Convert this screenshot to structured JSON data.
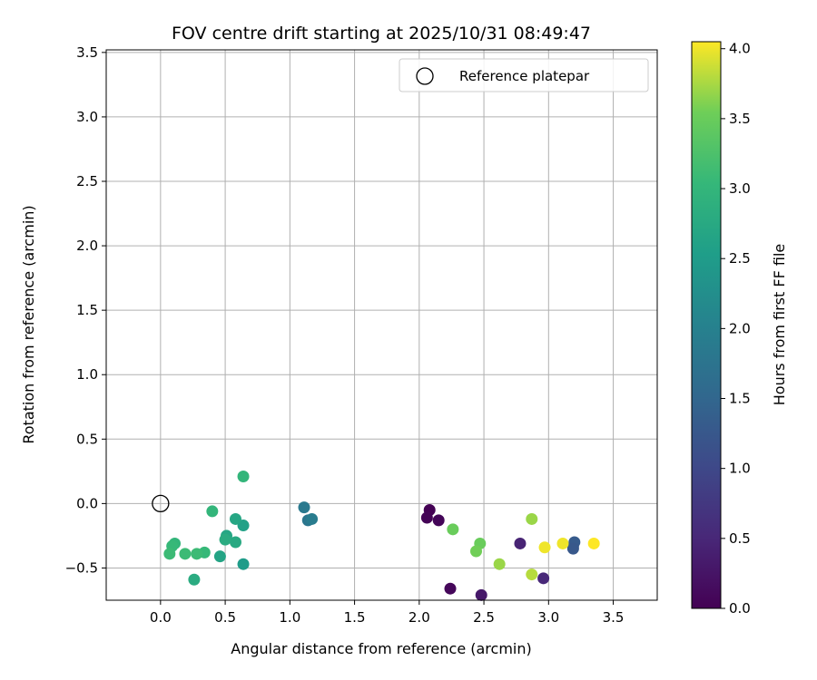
{
  "chart_data": {
    "type": "scatter",
    "title": "FOV centre drift starting at 2025/10/31 08:49:47",
    "xlabel": "Angular distance from reference (arcmin)",
    "ylabel": "Rotation from reference (arcmin)",
    "xlim": [
      -0.42,
      3.84
    ],
    "ylim": [
      -0.75,
      3.52
    ],
    "xticks": [
      0.0,
      0.5,
      1.0,
      1.5,
      2.0,
      2.5,
      3.0,
      3.5
    ],
    "yticks": [
      -0.5,
      0.0,
      0.5,
      1.0,
      1.5,
      2.0,
      2.5,
      3.0,
      3.5
    ],
    "xtick_labels": [
      "0.0",
      "0.5",
      "1.0",
      "1.5",
      "2.0",
      "2.5",
      "3.0",
      "3.5"
    ],
    "ytick_labels": [
      "−0.5",
      "0.0",
      "0.5",
      "1.0",
      "1.5",
      "2.0",
      "2.5",
      "3.0",
      "3.5"
    ],
    "grid": true,
    "legend": {
      "position": "top-right",
      "entries": [
        {
          "label": "Reference platepar",
          "marker": "open-circle"
        }
      ]
    },
    "reference_point": {
      "x": 0.0,
      "y": 0.0
    },
    "colorbar": {
      "label": "Hours from first FF file",
      "colormap": "viridis",
      "range": [
        0.0,
        4.05
      ],
      "ticks": [
        0.0,
        0.5,
        1.0,
        1.5,
        2.0,
        2.5,
        3.0,
        3.5,
        4.0
      ],
      "tick_labels": [
        "0.0",
        "0.5",
        "1.0",
        "1.5",
        "2.0",
        "2.5",
        "3.0",
        "3.5",
        "4.0"
      ]
    },
    "points": [
      {
        "x": 2.08,
        "y": -0.05,
        "c": 0.0
      },
      {
        "x": 2.06,
        "y": -0.11,
        "c": 0.03
      },
      {
        "x": 2.15,
        "y": -0.13,
        "c": 0.05
      },
      {
        "x": 2.24,
        "y": -0.66,
        "c": 0.08
      },
      {
        "x": 2.48,
        "y": -0.71,
        "c": 0.3
      },
      {
        "x": 2.78,
        "y": -0.31,
        "c": 0.45
      },
      {
        "x": 2.96,
        "y": -0.58,
        "c": 0.5
      },
      {
        "x": 3.19,
        "y": -0.33,
        "c": 1.2
      },
      {
        "x": 3.2,
        "y": -0.3,
        "c": 1.3
      },
      {
        "x": 3.19,
        "y": -0.35,
        "c": 1.25
      },
      {
        "x": 1.11,
        "y": -0.03,
        "c": 1.85
      },
      {
        "x": 1.14,
        "y": -0.13,
        "c": 1.8
      },
      {
        "x": 1.17,
        "y": -0.12,
        "c": 1.9
      },
      {
        "x": 0.64,
        "y": -0.47,
        "c": 2.5
      },
      {
        "x": 0.64,
        "y": -0.17,
        "c": 2.6
      },
      {
        "x": 0.58,
        "y": -0.12,
        "c": 2.7
      },
      {
        "x": 0.58,
        "y": -0.3,
        "c": 2.75
      },
      {
        "x": 0.51,
        "y": -0.25,
        "c": 2.7
      },
      {
        "x": 0.5,
        "y": -0.28,
        "c": 2.8
      },
      {
        "x": 0.46,
        "y": -0.41,
        "c": 2.65
      },
      {
        "x": 0.26,
        "y": -0.59,
        "c": 2.8
      },
      {
        "x": 0.64,
        "y": 0.21,
        "c": 3.0
      },
      {
        "x": 0.4,
        "y": -0.06,
        "c": 3.0
      },
      {
        "x": 0.34,
        "y": -0.38,
        "c": 3.05
      },
      {
        "x": 0.28,
        "y": -0.39,
        "c": 3.1
      },
      {
        "x": 0.19,
        "y": -0.39,
        "c": 3.1
      },
      {
        "x": 0.11,
        "y": -0.31,
        "c": 3.0
      },
      {
        "x": 0.09,
        "y": -0.33,
        "c": 3.05
      },
      {
        "x": 0.07,
        "y": -0.39,
        "c": 3.1
      },
      {
        "x": 2.26,
        "y": -0.2,
        "c": 3.5
      },
      {
        "x": 2.47,
        "y": -0.31,
        "c": 3.5
      },
      {
        "x": 2.44,
        "y": -0.37,
        "c": 3.55
      },
      {
        "x": 2.62,
        "y": -0.47,
        "c": 3.7
      },
      {
        "x": 2.87,
        "y": -0.12,
        "c": 3.7
      },
      {
        "x": 2.87,
        "y": -0.55,
        "c": 3.8
      },
      {
        "x": 2.97,
        "y": -0.34,
        "c": 4.0
      },
      {
        "x": 3.11,
        "y": -0.31,
        "c": 4.0
      },
      {
        "x": 3.35,
        "y": -0.31,
        "c": 4.05
      }
    ]
  }
}
